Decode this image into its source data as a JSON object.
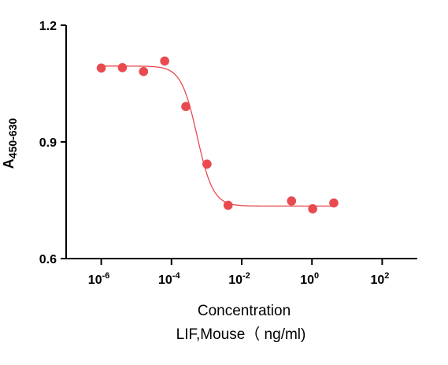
{
  "chart_data": {
    "type": "scatter",
    "xscale": "log",
    "xlim": [
      1e-07,
      1000
    ],
    "ylim": [
      0.6,
      1.2
    ],
    "x_ticks": [
      {
        "value": 1e-06,
        "base": "10",
        "exp": "-6"
      },
      {
        "value": 0.0001,
        "base": "10",
        "exp": "-4"
      },
      {
        "value": 0.01,
        "base": "10",
        "exp": "-2"
      },
      {
        "value": 1,
        "base": "10",
        "exp": "0"
      },
      {
        "value": 100,
        "base": "10",
        "exp": "2"
      }
    ],
    "y_ticks": [
      {
        "value": 0.6,
        "label": "0.6"
      },
      {
        "value": 0.9,
        "label": "0.9"
      },
      {
        "value": 1.2,
        "label": "1.2"
      }
    ],
    "xlabel": "Concentration",
    "xlabel_line2": "LIF,Mouse（ ng/ml)",
    "ylabel": {
      "main": "A",
      "sub": "450-630"
    },
    "color": "#e84a4f",
    "points": [
      {
        "x": 1e-06,
        "y": 1.09
      },
      {
        "x": 4e-06,
        "y": 1.091
      },
      {
        "x": 1.6e-05,
        "y": 1.081
      },
      {
        "x": 6.4e-05,
        "y": 1.108
      },
      {
        "x": 0.000256,
        "y": 0.991
      },
      {
        "x": 0.001024,
        "y": 0.843
      },
      {
        "x": 0.004096,
        "y": 0.737
      },
      {
        "x": 0.262,
        "y": 0.748
      },
      {
        "x": 1.05,
        "y": 0.728
      },
      {
        "x": 4.19,
        "y": 0.743
      }
    ],
    "fit": {
      "top": 1.095,
      "bottom": 0.735,
      "logEC50": -3.27,
      "hill": 1.9
    }
  }
}
